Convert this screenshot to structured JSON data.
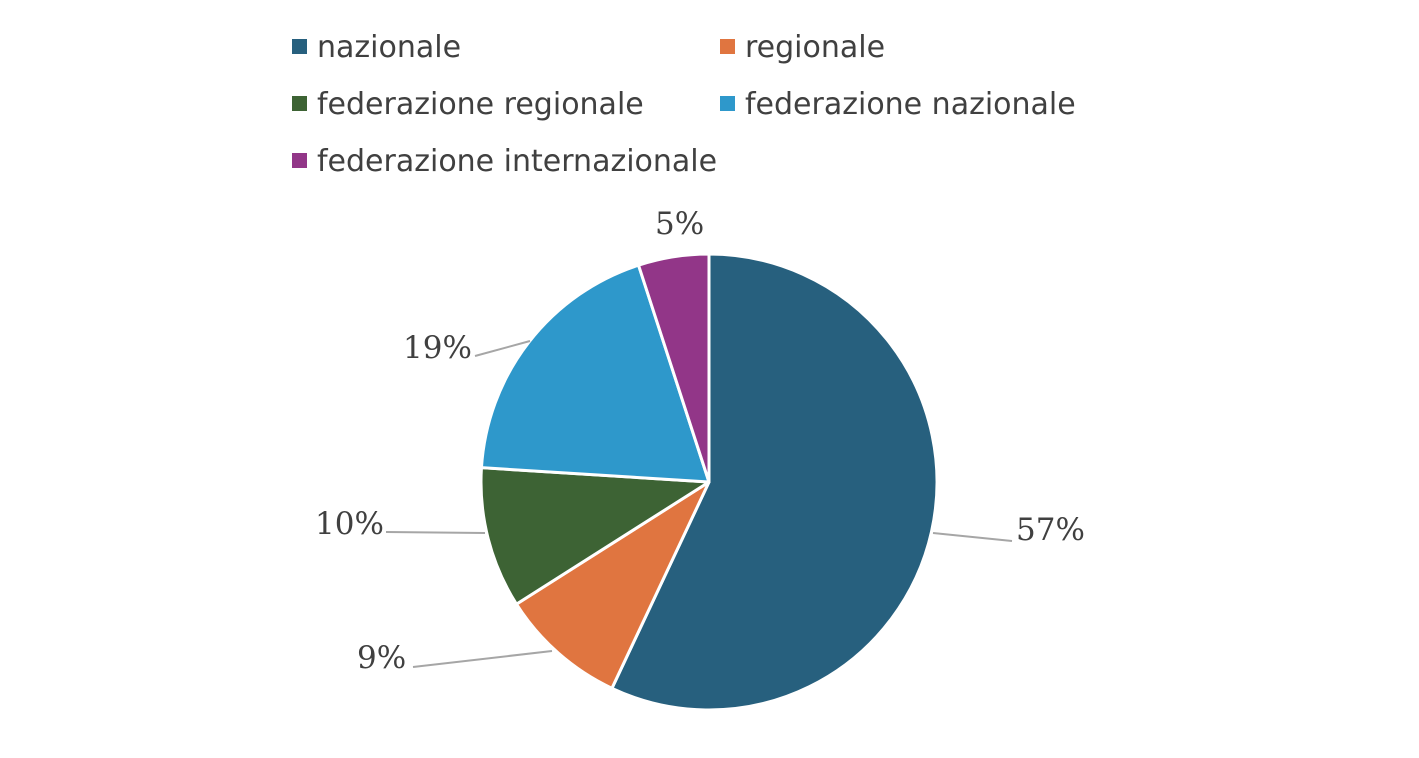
{
  "chart_data": {
    "type": "pie",
    "title": "",
    "legend_position": "top",
    "categories": [
      "nazionale",
      "regionale",
      "federazione regionale",
      "federazione nazionale",
      "federazione internazionale"
    ],
    "values": [
      57,
      9,
      10,
      19,
      5
    ],
    "labels": [
      "57%",
      "9%",
      "10%",
      "19%",
      "5%"
    ],
    "colors": [
      "#27607e",
      "#e07540",
      "#3d6334",
      "#2e98cb",
      "#923688"
    ]
  }
}
